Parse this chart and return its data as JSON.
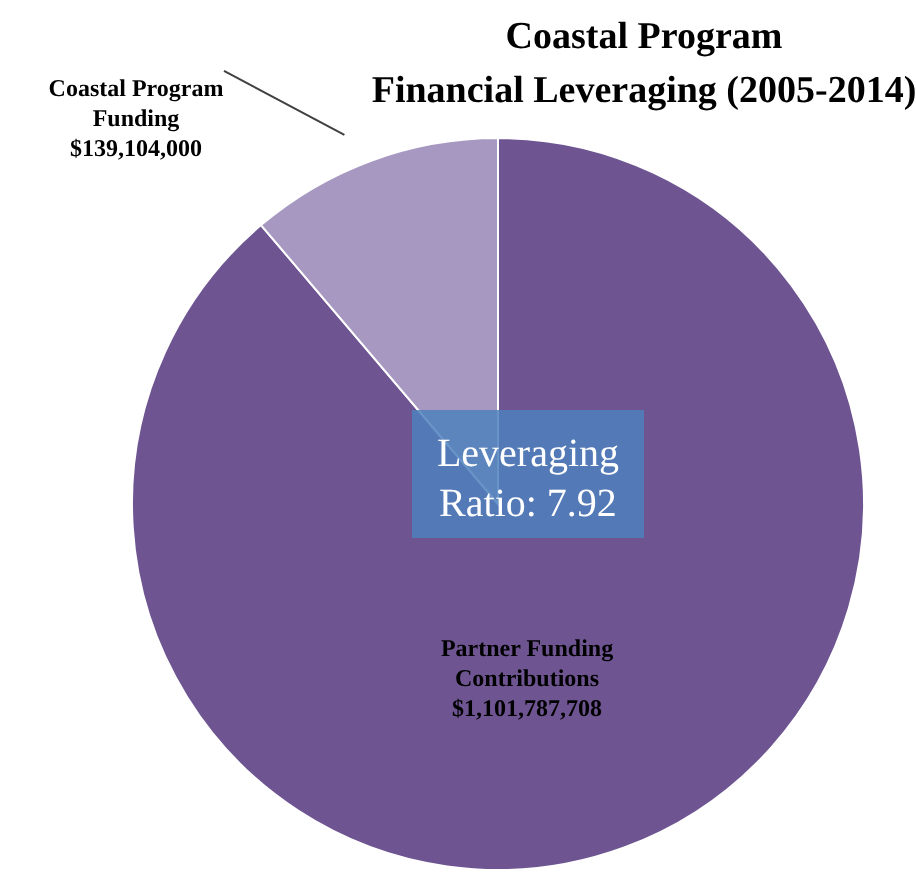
{
  "chart_data": {
    "type": "pie",
    "title": "Coastal Program\nFinancial Leveraging (2005-2014)",
    "categories": [
      "Partner Funding\nContributions",
      "Coastal Program\nFunding"
    ],
    "values": [
      1101787708,
      139104000
    ],
    "value_labels": [
      "$1,101,787,708",
      "$139,104,000"
    ],
    "colors": [
      "#6e5592",
      "#a798c1"
    ],
    "annotations": [
      "Leveraging\nRatio: 7.92"
    ]
  }
}
